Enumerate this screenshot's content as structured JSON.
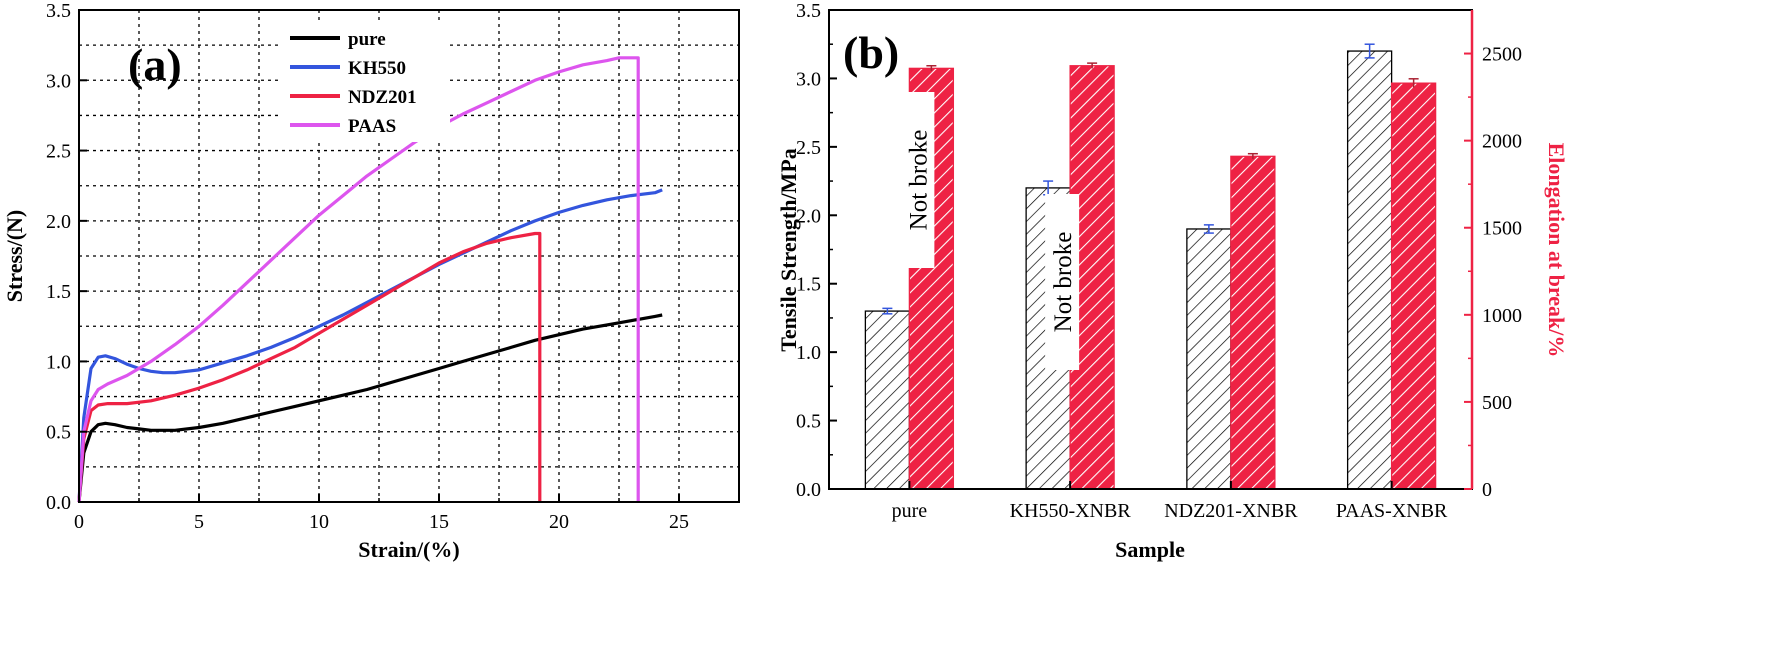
{
  "chart_data": [
    {
      "panel": "(a)",
      "type": "line",
      "xlabel": "Strain/(%)",
      "ylabel": "Stress/(N)",
      "xlim": [
        0,
        27.5
      ],
      "ylim": [
        0,
        3.5
      ],
      "xticks": [
        0,
        5,
        10,
        15,
        20,
        25
      ],
      "yticks": [
        0.0,
        0.5,
        1.0,
        1.5,
        2.0,
        2.5,
        3.0,
        3.5
      ],
      "grid": true,
      "legend_position": "top-center",
      "series": [
        {
          "name": "pure",
          "color": "#000000",
          "x": [
            0,
            0.2,
            0.5,
            0.8,
            1.1,
            1.5,
            2,
            2.5,
            3,
            3.5,
            4,
            5,
            6,
            7,
            8,
            9,
            10,
            11,
            12,
            13,
            14,
            15,
            16,
            17,
            18,
            19,
            20,
            21,
            22,
            23,
            24,
            24.3
          ],
          "y": [
            0,
            0.35,
            0.5,
            0.55,
            0.56,
            0.55,
            0.53,
            0.52,
            0.51,
            0.51,
            0.51,
            0.53,
            0.56,
            0.6,
            0.64,
            0.68,
            0.72,
            0.76,
            0.8,
            0.85,
            0.9,
            0.95,
            1.0,
            1.05,
            1.1,
            1.15,
            1.19,
            1.23,
            1.26,
            1.29,
            1.32,
            1.33
          ]
        },
        {
          "name": "KH550",
          "color": "#3355dd",
          "x": [
            0,
            0.2,
            0.5,
            0.8,
            1.1,
            1.5,
            2,
            2.5,
            3,
            3.5,
            4,
            5,
            6,
            7,
            8,
            9,
            10,
            11,
            12,
            13,
            14,
            15,
            16,
            17,
            18,
            19,
            20,
            21,
            22,
            23,
            24,
            24.3
          ],
          "y": [
            0,
            0.6,
            0.95,
            1.03,
            1.04,
            1.02,
            0.98,
            0.95,
            0.93,
            0.92,
            0.92,
            0.94,
            0.99,
            1.04,
            1.1,
            1.17,
            1.25,
            1.33,
            1.42,
            1.51,
            1.6,
            1.69,
            1.77,
            1.85,
            1.93,
            2.0,
            2.06,
            2.11,
            2.15,
            2.18,
            2.2,
            2.22
          ]
        },
        {
          "name": "NDZ201",
          "color": "#ee2244",
          "x": [
            0,
            0.2,
            0.5,
            0.8,
            1.2,
            1.6,
            2,
            3,
            4,
            5,
            6,
            7,
            8,
            9,
            10,
            11,
            12,
            13,
            14,
            15,
            16,
            17,
            18,
            19,
            19.2,
            19.2
          ],
          "y": [
            0,
            0.45,
            0.65,
            0.69,
            0.7,
            0.7,
            0.7,
            0.72,
            0.76,
            0.81,
            0.87,
            0.94,
            1.02,
            1.1,
            1.2,
            1.3,
            1.4,
            1.5,
            1.6,
            1.7,
            1.78,
            1.84,
            1.88,
            1.91,
            1.91,
            0
          ]
        },
        {
          "name": "PAAS",
          "color": "#dd55ee",
          "x": [
            0,
            0.2,
            0.5,
            0.8,
            1.2,
            2,
            3,
            4,
            5,
            6,
            7,
            8,
            9,
            10,
            11,
            12,
            13,
            14,
            15,
            16,
            17,
            18,
            19,
            20,
            21,
            22,
            22.5,
            23,
            23.3,
            23.3
          ],
          "y": [
            0,
            0.5,
            0.72,
            0.8,
            0.84,
            0.9,
            1.0,
            1.12,
            1.25,
            1.4,
            1.56,
            1.72,
            1.88,
            2.04,
            2.18,
            2.32,
            2.44,
            2.56,
            2.67,
            2.76,
            2.84,
            2.92,
            3.0,
            3.06,
            3.11,
            3.14,
            3.16,
            3.16,
            3.16,
            0
          ]
        }
      ]
    },
    {
      "panel": "(b)",
      "type": "bar",
      "xlabel": "Sample",
      "ylabel": "Tensile Strength/MPa",
      "y2label": "Elongation at break/%",
      "categories": [
        "pure",
        "KH550-XNBR",
        "NDZ201-XNBR",
        "PAAS-XNBR"
      ],
      "ylim": [
        0,
        3.5
      ],
      "y2lim": [
        0,
        2750
      ],
      "yticks": [
        0.0,
        0.5,
        1.0,
        1.5,
        2.0,
        2.5,
        3.0,
        3.5
      ],
      "y2ticks": [
        0,
        500,
        1000,
        1500,
        2000,
        2500
      ],
      "grid": false,
      "series": [
        {
          "name": "Tensile Strength",
          "axis": "left",
          "pattern": "black-hatch",
          "values": [
            1.3,
            2.2,
            1.9,
            3.2
          ],
          "errors": [
            0.02,
            0.05,
            0.03,
            0.05
          ]
        },
        {
          "name": "Elongation at break",
          "axis": "right",
          "pattern": "red-hatch",
          "values": [
            2415,
            2430,
            1910,
            2330
          ],
          "errors": [
            15,
            15,
            15,
            25
          ]
        }
      ],
      "annotations": [
        {
          "text": "Not broke",
          "category": "pure"
        },
        {
          "text": "Not broke",
          "category": "KH550-XNBR"
        }
      ]
    }
  ],
  "legend_a": [
    "pure",
    "KH550",
    "NDZ201",
    "PAAS"
  ],
  "colors": {
    "pure": "#000000",
    "KH550": "#3355dd",
    "NDZ201": "#ee2244",
    "PAAS": "#dd55ee",
    "right_axis": "#ee2244",
    "bar_left_hatch": "#000000",
    "bar_right_fill": "#ee2244"
  }
}
